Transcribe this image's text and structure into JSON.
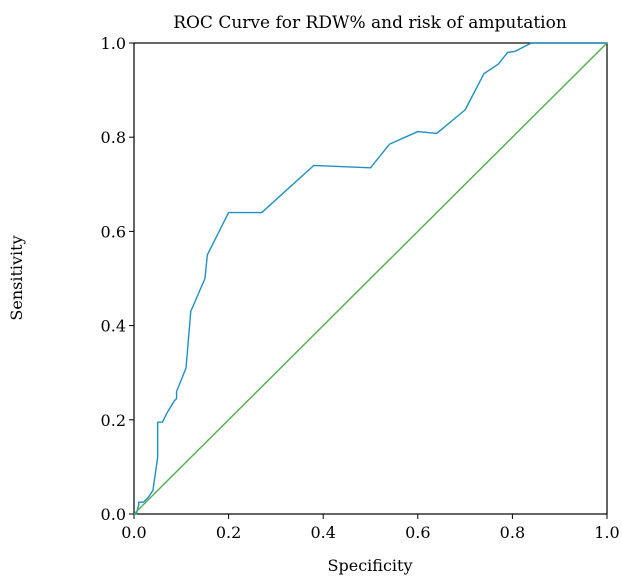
{
  "chart_data": {
    "type": "line",
    "title": "ROC Curve for RDW% and risk of amputation",
    "xlabel": "Specificity",
    "ylabel": "Sensitivity",
    "xlim": [
      0.0,
      1.0
    ],
    "ylim": [
      0.0,
      1.0
    ],
    "xticks": [
      "0.0",
      "0.2",
      "0.4",
      "0.6",
      "0.8",
      "1.0"
    ],
    "yticks": [
      "0.0",
      "0.2",
      "0.4",
      "0.6",
      "0.8",
      "1.0"
    ],
    "grid": false,
    "legend": "none",
    "series": [
      {
        "color": "#1f8fc4",
        "x": [
          0.0,
          0.005,
          0.01,
          0.01,
          0.02,
          0.03,
          0.04,
          0.04,
          0.05,
          0.05,
          0.055,
          0.06,
          0.07,
          0.085,
          0.09,
          0.09,
          0.11,
          0.12,
          0.15,
          0.155,
          0.19,
          0.2,
          0.27,
          0.38,
          0.5,
          0.54,
          0.6,
          0.64,
          0.7,
          0.74,
          0.77,
          0.79,
          0.805,
          0.84,
          1.0
        ],
        "y": [
          0.0,
          0.0,
          0.02,
          0.025,
          0.025,
          0.035,
          0.05,
          0.05,
          0.12,
          0.195,
          0.195,
          0.195,
          0.215,
          0.24,
          0.245,
          0.26,
          0.31,
          0.43,
          0.5,
          0.55,
          0.62,
          0.64,
          0.64,
          0.74,
          0.735,
          0.785,
          0.812,
          0.808,
          0.858,
          0.935,
          0.955,
          0.98,
          0.982,
          1.0,
          1.0
        ]
      },
      {
        "color": "#4daf4a",
        "x": [
          0.0,
          1.0
        ],
        "y": [
          0.0,
          1.0
        ]
      }
    ]
  }
}
